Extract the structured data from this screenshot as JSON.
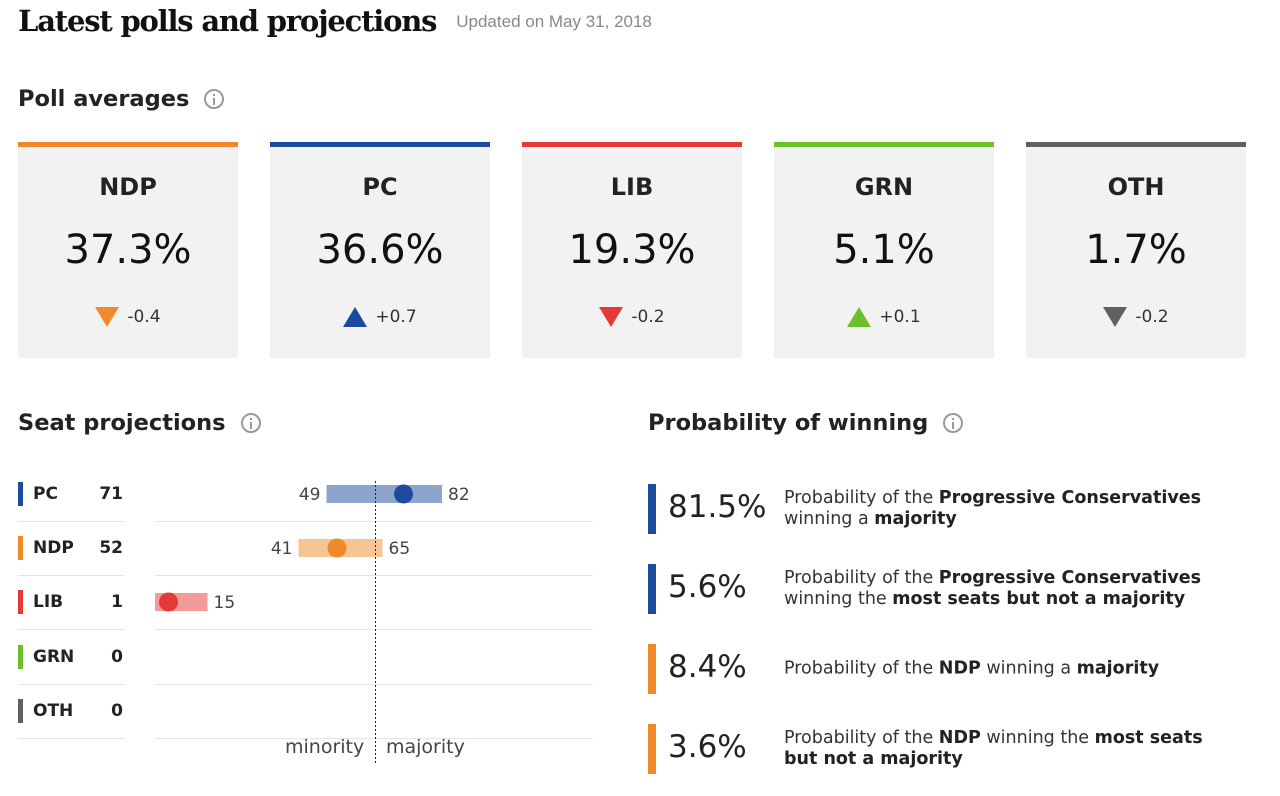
{
  "header": {
    "title": "Latest polls and projections",
    "updated": "Updated on May 31, 2018"
  },
  "poll_averages": {
    "title": "Poll averages",
    "parties": [
      {
        "party": "NDP",
        "value": "37.3%",
        "change": "-0.4",
        "direction": "down",
        "color": "#f0892a"
      },
      {
        "party": "PC",
        "value": "36.6%",
        "change": "+0.7",
        "direction": "up",
        "color": "#1c4a9c"
      },
      {
        "party": "LIB",
        "value": "19.3%",
        "change": "-0.2",
        "direction": "down",
        "color": "#e53935"
      },
      {
        "party": "GRN",
        "value": "5.1%",
        "change": "+0.1",
        "direction": "up",
        "color": "#6cc02a"
      },
      {
        "party": "OTH",
        "value": "1.7%",
        "change": "-0.2",
        "direction": "down",
        "color": "#606060"
      }
    ]
  },
  "seat_projections": {
    "title": "Seat projections",
    "rows": [
      {
        "party": "PC",
        "seats": "71",
        "color": "#1c4a9c"
      },
      {
        "party": "NDP",
        "seats": "52",
        "color": "#f0892a"
      },
      {
        "party": "LIB",
        "seats": "1",
        "color": "#e53935"
      },
      {
        "party": "GRN",
        "seats": "0",
        "color": "#6cc02a"
      },
      {
        "party": "OTH",
        "seats": "0",
        "color": "#606060"
      }
    ],
    "minority_label": "minority",
    "majority_label": "majority"
  },
  "probability": {
    "title": "Probability of winning",
    "items": [
      {
        "value": "81.5%",
        "color": "#1c4a9c",
        "parts": [
          {
            "t": "Probability of the ",
            "b": false
          },
          {
            "t": "Progressive Conservatives",
            "b": true
          },
          {
            "t": " winning a ",
            "b": false
          },
          {
            "t": "majority",
            "b": true
          }
        ]
      },
      {
        "value": "5.6%",
        "color": "#1c4a9c",
        "parts": [
          {
            "t": "Probability of the ",
            "b": false
          },
          {
            "t": "Progressive Conservatives",
            "b": true
          },
          {
            "t": " winning the ",
            "b": false
          },
          {
            "t": "most seats but not a majority",
            "b": true
          }
        ]
      },
      {
        "value": "8.4%",
        "color": "#f0892a",
        "parts": [
          {
            "t": "Probability of the ",
            "b": false
          },
          {
            "t": "NDP",
            "b": true
          },
          {
            "t": " winning a ",
            "b": false
          },
          {
            "t": "majority",
            "b": true
          }
        ]
      },
      {
        "value": "3.6%",
        "color": "#f0892a",
        "parts": [
          {
            "t": "Probability of the ",
            "b": false
          },
          {
            "t": "NDP",
            "b": true
          },
          {
            "t": " winning the ",
            "b": false
          },
          {
            "t": "most seats but not a majority",
            "b": true
          }
        ]
      }
    ]
  },
  "chart_data": {
    "type": "range",
    "title": "Seat projections",
    "majority_threshold": 63,
    "xlim": [
      0,
      100
    ],
    "series": [
      {
        "party": "PC",
        "projection": 71,
        "low": 49,
        "high": 82,
        "color": "#1c4a9c"
      },
      {
        "party": "NDP",
        "projection": 52,
        "low": 41,
        "high": 65,
        "color": "#f0892a"
      },
      {
        "party": "LIB",
        "projection": 1,
        "low": 0,
        "high": 15,
        "color": "#e53935"
      },
      {
        "party": "GRN",
        "projection": 0,
        "low": null,
        "high": null,
        "color": "#6cc02a"
      },
      {
        "party": "OTH",
        "projection": 0,
        "low": null,
        "high": null,
        "color": "#606060"
      }
    ]
  }
}
